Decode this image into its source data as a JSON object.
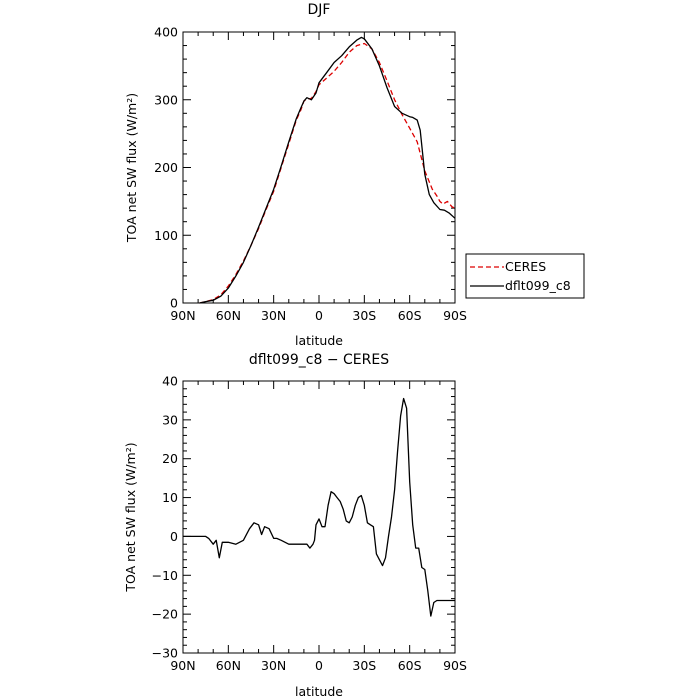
{
  "chart_data": [
    {
      "type": "line",
      "title": "DJF",
      "xlabel": "latitude",
      "ylabel": "TOA net SW flux (W/m²)",
      "xlim": [
        90,
        -90
      ],
      "ylim": [
        0,
        400
      ],
      "x_ticks": [
        90,
        60,
        30,
        0,
        -30,
        -60,
        -90
      ],
      "x_tick_labels": [
        "90N",
        "60N",
        "30N",
        "0",
        "30S",
        "60S",
        "90S"
      ],
      "y_ticks": [
        0,
        100,
        200,
        300,
        400
      ],
      "y_tick_labels": [
        "0",
        "100",
        "200",
        "300",
        "400"
      ],
      "legend_position": "right",
      "series": [
        {
          "name": "CERES",
          "color": "#dd0000",
          "style": "dashed",
          "x": [
            79,
            75,
            70,
            65,
            60,
            55,
            50,
            45,
            40,
            35,
            30,
            25,
            20,
            15,
            12,
            10,
            8,
            5,
            2,
            0,
            -5,
            -10,
            -15,
            -20,
            -25,
            -30,
            -35,
            -40,
            -45,
            -50,
            -55,
            -60,
            -65,
            -70,
            -75,
            -78,
            -80,
            -82,
            -85,
            -88,
            -90
          ],
          "y": [
            0,
            2,
            5,
            12,
            25,
            42,
            62,
            85,
            110,
            138,
            165,
            200,
            235,
            270,
            285,
            298,
            301,
            302,
            312,
            322,
            332,
            342,
            355,
            370,
            380,
            383,
            375,
            355,
            328,
            300,
            278,
            258,
            238,
            195,
            168,
            158,
            150,
            146,
            150,
            142,
            140
          ]
        },
        {
          "name": "dflt099_c8",
          "color": "#000000",
          "style": "solid",
          "x": [
            79,
            75,
            70,
            65,
            60,
            55,
            50,
            45,
            40,
            35,
            30,
            25,
            20,
            15,
            12,
            10,
            8,
            5,
            2,
            0,
            -5,
            -10,
            -15,
            -20,
            -25,
            -28,
            -30,
            -35,
            -40,
            -45,
            -50,
            -55,
            -60,
            -62,
            -65,
            -67,
            -70,
            -73,
            -76,
            -80,
            -83,
            -86,
            -90
          ],
          "y": [
            0,
            2,
            4,
            10,
            22,
            40,
            60,
            85,
            112,
            140,
            168,
            202,
            238,
            272,
            288,
            298,
            303,
            300,
            310,
            325,
            340,
            355,
            365,
            378,
            388,
            392,
            390,
            375,
            350,
            318,
            290,
            280,
            275,
            274,
            270,
            255,
            190,
            160,
            148,
            138,
            137,
            133,
            125
          ]
        }
      ]
    },
    {
      "type": "line",
      "title": "dflt099_c8 − CERES",
      "xlabel": "latitude",
      "ylabel": "TOA net SW flux (W/m²)",
      "xlim": [
        90,
        -90
      ],
      "ylim": [
        -30,
        40
      ],
      "x_ticks": [
        90,
        60,
        30,
        0,
        -30,
        -60,
        -90
      ],
      "x_tick_labels": [
        "90N",
        "60N",
        "30N",
        "0",
        "30S",
        "60S",
        "90S"
      ],
      "y_ticks": [
        -30,
        -20,
        -10,
        0,
        10,
        20,
        30,
        40
      ],
      "y_tick_labels": [
        "−30",
        "−20",
        "−10",
        "0",
        "10",
        "20",
        "30",
        "40"
      ],
      "series": [
        {
          "color": "#000000",
          "style": "solid",
          "x": [
            90,
            80,
            75,
            73,
            70,
            68,
            66,
            64,
            60,
            55,
            50,
            46,
            43,
            40,
            38,
            36,
            33,
            30,
            28,
            25,
            20,
            15,
            12,
            10,
            8,
            6,
            4,
            3,
            2,
            0,
            -2,
            -4,
            -6,
            -8,
            -10,
            -12,
            -14,
            -16,
            -18,
            -20,
            -22,
            -24,
            -26,
            -28,
            -30,
            -32,
            -34,
            -36,
            -38,
            -40,
            -42,
            -44,
            -46,
            -48,
            -50,
            -52,
            -54,
            -56,
            -58,
            -60,
            -62,
            -64,
            -66,
            -68,
            -70,
            -72,
            -74,
            -76,
            -78,
            -80,
            -82,
            -84,
            -86,
            -88,
            -90
          ],
          "y": [
            0,
            0,
            0,
            -0.5,
            -2,
            -1,
            -5.5,
            -1.5,
            -1.5,
            -2,
            -1,
            2,
            3.5,
            3,
            0.5,
            2.5,
            2,
            -0.5,
            -0.5,
            -1,
            -2,
            -2,
            -2,
            -2,
            -2,
            -3,
            -2,
            -1,
            3,
            4.5,
            2.5,
            2.5,
            8,
            11.5,
            11,
            10,
            9,
            7,
            4,
            3.5,
            5,
            8,
            10,
            10.5,
            8,
            3.5,
            3,
            2.5,
            -4.5,
            -6,
            -7.5,
            -5.5,
            0,
            5,
            12,
            22,
            31,
            35.5,
            33,
            14,
            3,
            -3,
            -3,
            -8,
            -8.5,
            -14,
            -20.5,
            -17,
            -16.5,
            -16.5,
            -16.5,
            -16.5,
            -16.5,
            -16.5,
            -16.5
          ]
        }
      ]
    }
  ]
}
